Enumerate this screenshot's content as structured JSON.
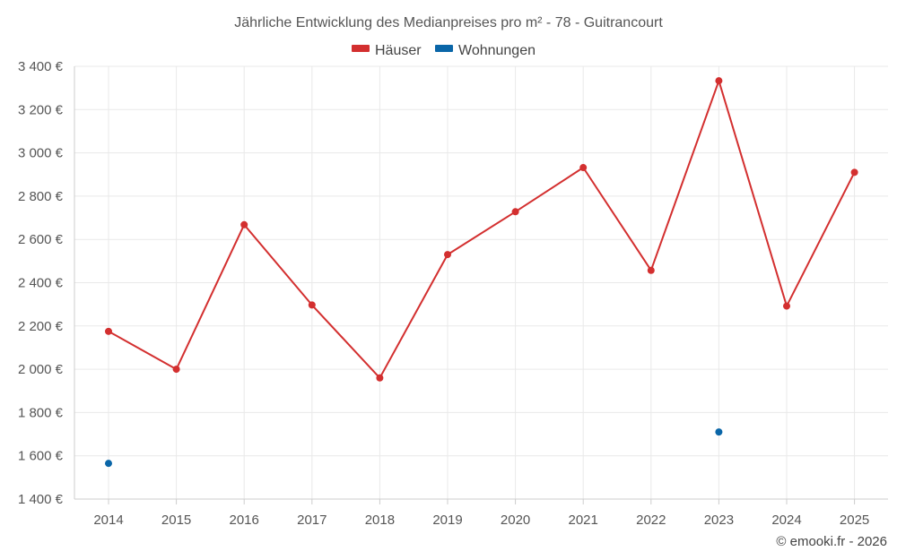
{
  "chart_data": {
    "type": "line",
    "title": "Jährliche Entwicklung des Medianpreises pro m² - 78 - Guitrancourt",
    "x": [
      "2014",
      "2015",
      "2016",
      "2017",
      "2018",
      "2019",
      "2020",
      "2021",
      "2022",
      "2023",
      "2024",
      "2025"
    ],
    "series": [
      {
        "name": "Häuser",
        "color": "#d32f2f",
        "values": [
          2175,
          2000,
          2668,
          2297,
          1960,
          2530,
          2728,
          2932,
          2457,
          3333,
          2292,
          2910
        ]
      },
      {
        "name": "Wohnungen",
        "color": "#0a66a8",
        "values": [
          1565,
          null,
          null,
          null,
          null,
          null,
          null,
          null,
          null,
          1710,
          null,
          null
        ]
      }
    ],
    "ylim": [
      1400,
      3400
    ],
    "yticks": [
      1400,
      1600,
      1800,
      2000,
      2200,
      2400,
      2600,
      2800,
      3000,
      3200,
      3400
    ],
    "yticks_labels": [
      "1 400 €",
      "1 600 €",
      "1 800 €",
      "2 000 €",
      "2 200 €",
      "2 400 €",
      "2 600 €",
      "2 800 €",
      "3 000 €",
      "3 200 €",
      "3 400 €"
    ],
    "grid": true,
    "legend_position": "top-center"
  },
  "credit": "© emooki.fr - 2026"
}
